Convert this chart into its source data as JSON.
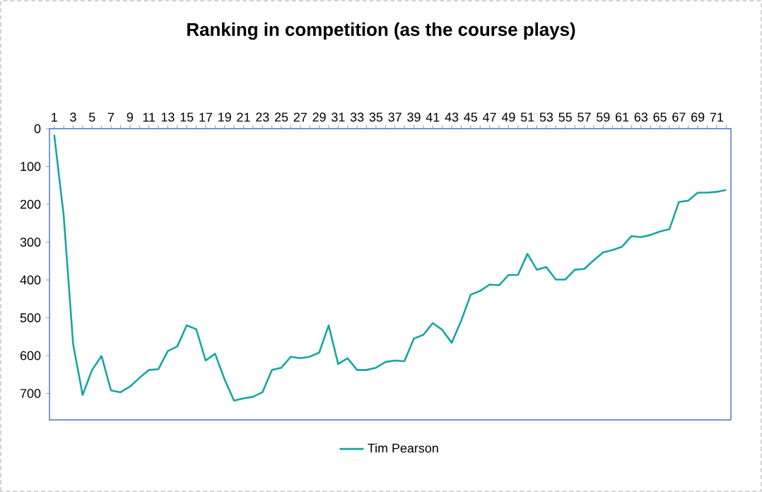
{
  "chart_data": {
    "type": "line",
    "title": "Ranking in competition (as the course plays)",
    "categories": [
      "1",
      null,
      "3",
      null,
      "5",
      null,
      "7",
      null,
      "9",
      null,
      "11",
      null,
      "13",
      null,
      "15",
      null,
      "17",
      null,
      "19",
      null,
      "21",
      null,
      "23",
      null,
      "25",
      null,
      "27",
      null,
      "29",
      null,
      "31",
      null,
      "33",
      null,
      "35",
      null,
      "37",
      null,
      "39",
      null,
      "41",
      null,
      "43",
      null,
      "45",
      null,
      "47",
      null,
      "49",
      null,
      "51",
      null,
      "53",
      null,
      "55",
      null,
      "57",
      null,
      "59",
      null,
      "61",
      null,
      "63",
      null,
      "65",
      null,
      "67",
      null,
      "69",
      null,
      "71",
      null
    ],
    "series": [
      {
        "name": "Tim Pearson",
        "color": "#17a5a0",
        "values": [
          16,
          230,
          570,
          704,
          638,
          601,
          692,
          697,
          682,
          659,
          638,
          636,
          588,
          576,
          520,
          530,
          613,
          595,
          663,
          719,
          713,
          709,
          697,
          638,
          632,
          603,
          607,
          603,
          592,
          520,
          622,
          607,
          638,
          638,
          632,
          617,
          613,
          615,
          555,
          545,
          514,
          532,
          566,
          508,
          439,
          429,
          412,
          414,
          387,
          387,
          331,
          373,
          366,
          399,
          399,
          373,
          371,
          348,
          327,
          321,
          312,
          284,
          287,
          281,
          272,
          266,
          194,
          190,
          169,
          169,
          167,
          162
        ]
      }
    ],
    "ylim": [
      770,
      0
    ],
    "yticks": [
      0,
      100,
      200,
      300,
      400,
      500,
      600,
      700
    ],
    "legend": "bottom",
    "marker": "none",
    "line_style": "solid"
  }
}
